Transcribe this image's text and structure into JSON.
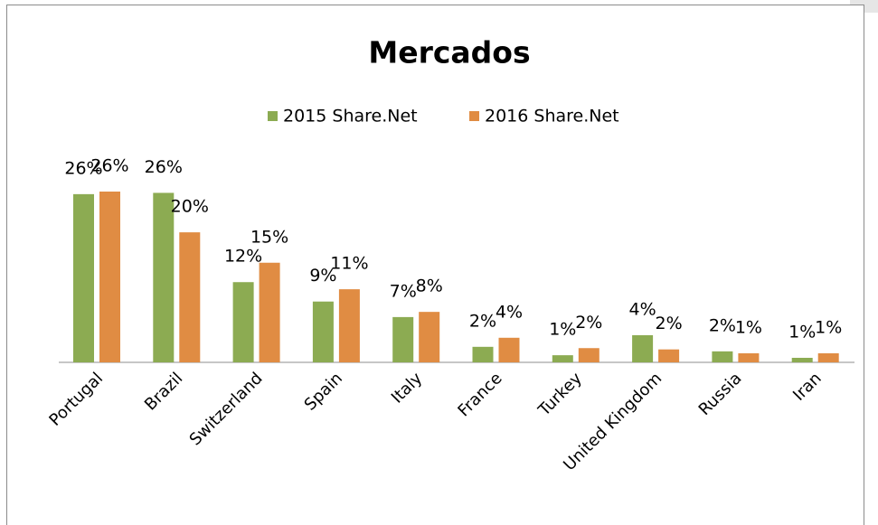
{
  "chart_data": {
    "type": "bar",
    "title": "Mercados",
    "categories": [
      "Portugal",
      "Brazil",
      "Switzerland",
      "Spain",
      "Italy",
      "France",
      "Turkey",
      "United Kingdom",
      "Russia",
      "Iran"
    ],
    "series": [
      {
        "name": "2015 Share.Net",
        "color": "#8cab52",
        "values": [
          26.0,
          26.2,
          12.4,
          9.4,
          7.0,
          2.4,
          1.1,
          4.2,
          1.7,
          0.7
        ],
        "value_labels": [
          "26%",
          "26%",
          "12%",
          "9%",
          "7%",
          "2%",
          "1%",
          "4%",
          "2%",
          "1%"
        ]
      },
      {
        "name": "2016 Share.Net",
        "color": "#e08c43",
        "values": [
          26.4,
          20.1,
          15.4,
          11.3,
          7.8,
          3.8,
          2.2,
          2.0,
          1.4,
          1.4
        ],
        "value_labels": [
          "26%",
          "20%",
          "15%",
          "11%",
          "8%",
          "4%",
          "2%",
          "2%",
          "1%",
          "1%"
        ]
      }
    ],
    "legend": "top"
  }
}
